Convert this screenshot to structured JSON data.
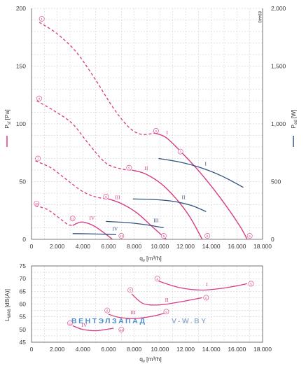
{
  "document_id": "89440",
  "colors": {
    "pressure": "#d63c84",
    "power": "#33527f",
    "grid": "#c8c8c8",
    "axis": "#555555",
    "watermark_left": "#4a8fcf",
    "watermark_right": "#9ab2cf"
  },
  "watermark": {
    "left": "ВЕНТЭЛЗАПАД",
    "right": "V-W.BY"
  },
  "chart_data": [
    {
      "type": "line",
      "xlabel_main": "q",
      "xlabel_sub": "v",
      "xlabel_unit": "[m³/h]",
      "ylabel_left_main": "P",
      "ylabel_left_sub": "sf",
      "ylabel_left_unit": "[Pa]",
      "ylabel_right_main": "P",
      "ylabel_right_sub": "ed",
      "ylabel_right_unit": "[W]",
      "xlim": [
        0,
        18000
      ],
      "ylim_left": [
        0,
        200
      ],
      "ylim_right": [
        0,
        2000
      ],
      "x_ticks": [
        "0",
        "2.000",
        "4.000",
        "6.000",
        "8.000",
        "10.000",
        "12.000",
        "14.000",
        "16.000",
        "18.000"
      ],
      "y_ticks_left": [
        "0",
        "50",
        "100",
        "150",
        "200"
      ],
      "y_ticks_right": [
        "0",
        "500",
        "1,000",
        "1,500",
        "2,000"
      ],
      "grid": true,
      "pressure_series": [
        {
          "name": "I",
          "dashed": [
            [
              600,
              188
            ],
            [
              2000,
              178
            ],
            [
              3500,
              162
            ],
            [
              5000,
              138
            ],
            [
              6300,
              115
            ],
            [
              7500,
              98
            ],
            [
              8500,
              91
            ],
            [
              9600,
              92
            ]
          ],
          "solid": [
            [
              9600,
              92
            ],
            [
              10500,
              88
            ],
            [
              11800,
              74
            ],
            [
              13200,
              57
            ],
            [
              14700,
              36
            ],
            [
              16200,
              12
            ],
            [
              16800,
              0
            ]
          ],
          "markers": [
            {
              "label": "1",
              "x": 800,
              "y": 191
            },
            {
              "label": "2",
              "x": 9700,
              "y": 94
            },
            {
              "label": "3",
              "x": 11600,
              "y": 76
            },
            {
              "label": "5",
              "x": 17000,
              "y": 3
            }
          ],
          "roman_label": {
            "text": "I",
            "x": 10500,
            "y": 91
          }
        },
        {
          "name": "II",
          "dashed": [
            [
              400,
              120
            ],
            [
              1800,
              111
            ],
            [
              3200,
              100
            ],
            [
              4500,
              82
            ],
            [
              5800,
              66
            ],
            [
              7000,
              61
            ],
            [
              7800,
              60
            ]
          ],
          "solid": [
            [
              7800,
              60
            ],
            [
              8800,
              57
            ],
            [
              10000,
              49
            ],
            [
              11200,
              36
            ],
            [
              12300,
              20
            ],
            [
              13300,
              0
            ]
          ],
          "markers": [
            {
              "label": "4",
              "x": 600,
              "y": 122
            },
            {
              "label": "5",
              "x": 7600,
              "y": 62
            },
            {
              "label": "6",
              "x": 13700,
              "y": 3
            }
          ],
          "roman_label": {
            "text": "II",
            "x": 8800,
            "y": 60
          }
        },
        {
          "name": "III",
          "dashed": [
            [
              300,
              68
            ],
            [
              1500,
              62
            ],
            [
              2700,
              52
            ],
            [
              3900,
              42
            ],
            [
              4900,
              37
            ],
            [
              5900,
              35
            ],
            [
              6000,
              35
            ]
          ],
          "solid": [
            [
              6000,
              35
            ],
            [
              7000,
              31
            ],
            [
              8200,
              23
            ],
            [
              9500,
              10
            ],
            [
              10500,
              0
            ]
          ],
          "markers": [
            {
              "label": "7",
              "x": 500,
              "y": 70
            },
            {
              "label": "8",
              "x": 5800,
              "y": 37
            },
            {
              "label": "9",
              "x": 10300,
              "y": 3
            }
          ],
          "roman_label": {
            "text": "III",
            "x": 6500,
            "y": 35
          }
        },
        {
          "name": "IV",
          "dashed": [
            [
              300,
              29
            ],
            [
              1200,
              26
            ],
            [
              2100,
              19
            ],
            [
              2800,
              13
            ],
            [
              3200,
              12
            ]
          ],
          "solid": [
            [
              3200,
              12
            ],
            [
              3900,
              15
            ],
            [
              4800,
              12
            ],
            [
              5600,
              6
            ],
            [
              6300,
              0
            ]
          ],
          "markers": [
            {
              "label": "10",
              "x": 400,
              "y": 31
            },
            {
              "label": "11",
              "x": 3200,
              "y": 18
            },
            {
              "label": "12",
              "x": 7000,
              "y": 3
            }
          ],
          "roman_label": {
            "text": "IV",
            "x": 4500,
            "y": 17
          }
        }
      ],
      "power_series": [
        {
          "name": "I",
          "points": [
            [
              9900,
              700
            ],
            [
              11500,
              670
            ],
            [
              13200,
              620
            ],
            [
              14800,
              550
            ],
            [
              16500,
              450
            ]
          ],
          "roman_label": {
            "text": "I",
            "x": 13500,
            "y": 640
          }
        },
        {
          "name": "II",
          "points": [
            [
              7900,
              350
            ],
            [
              9500,
              345
            ],
            [
              11000,
              330
            ],
            [
              12400,
              295
            ],
            [
              13600,
              240
            ]
          ],
          "roman_label": {
            "text": "II",
            "x": 11700,
            "y": 350
          }
        },
        {
          "name": "III",
          "points": [
            [
              5800,
              155
            ],
            [
              7500,
              145
            ],
            [
              9000,
              125
            ],
            [
              10300,
              100
            ]
          ],
          "roman_label": {
            "text": "III",
            "x": 9500,
            "y": 150
          }
        },
        {
          "name": "IV",
          "points": [
            [
              3200,
              50
            ],
            [
              4500,
              48
            ],
            [
              5800,
              44
            ],
            [
              6600,
              40
            ]
          ],
          "roman_label": {
            "text": "IV",
            "x": 6300,
            "y": 75
          }
        }
      ]
    },
    {
      "type": "line",
      "xlabel_main": "q",
      "xlabel_sub": "v",
      "xlabel_unit": "[m³/h]",
      "ylabel_main": "L",
      "ylabel_sub": "WA6",
      "ylabel_unit": "[dB(A)]",
      "xlim": [
        0,
        18000
      ],
      "ylim": [
        45,
        75
      ],
      "x_ticks": [
        "0",
        "2.000",
        "4.000",
        "6.000",
        "8.000",
        "10.000",
        "12.000",
        "14.000",
        "16.000",
        "18.000"
      ],
      "y_ticks": [
        "45",
        "50",
        "55",
        "60",
        "65",
        "70",
        "75"
      ],
      "grid": true,
      "series": [
        {
          "name": "I",
          "points": [
            [
              9900,
              69
            ],
            [
              11500,
              66.5
            ],
            [
              13200,
              65.5
            ],
            [
              15000,
              66.3
            ],
            [
              16800,
              68
            ]
          ],
          "markers": [
            {
              "label": "2",
              "x": 9800,
              "y": 70
            },
            {
              "label": "5",
              "x": 17100,
              "y": 68
            }
          ],
          "roman_label": {
            "text": "I",
            "x": 13600,
            "y": 67
          }
        },
        {
          "name": "II",
          "points": [
            [
              7800,
              64
            ],
            [
              8700,
              60.2
            ],
            [
              10000,
              59.7
            ],
            [
              11500,
              60.8
            ],
            [
              13300,
              62.5
            ]
          ],
          "markers": [
            {
              "label": "5",
              "x": 7700,
              "y": 65.5
            },
            {
              "label": "6",
              "x": 13600,
              "y": 62.5
            }
          ],
          "roman_label": {
            "text": "II",
            "x": 10400,
            "y": 61
          }
        },
        {
          "name": "III",
          "points": [
            [
              6000,
              56
            ],
            [
              6800,
              54.8
            ],
            [
              8000,
              54.3
            ],
            [
              9500,
              55.3
            ],
            [
              10400,
              56.5
            ]
          ],
          "markers": [
            {
              "label": "8",
              "x": 5900,
              "y": 57.5
            },
            {
              "label": "9",
              "x": 10500,
              "y": 57
            }
          ],
          "roman_label": {
            "text": "III",
            "x": 7700,
            "y": 56
          }
        },
        {
          "name": "IV",
          "points": [
            [
              3200,
              51.5
            ],
            [
              4000,
              50
            ],
            [
              5000,
              49.5
            ],
            [
              5800,
              50
            ],
            [
              6400,
              50.5
            ]
          ],
          "markers": [
            {
              "label": "11",
              "x": 3000,
              "y": 52.5
            },
            {
              "label": "12",
              "x": 7000,
              "y": 50
            }
          ],
          "roman_label": {
            "text": "IV",
            "x": 3900,
            "y": 51
          }
        }
      ]
    }
  ]
}
